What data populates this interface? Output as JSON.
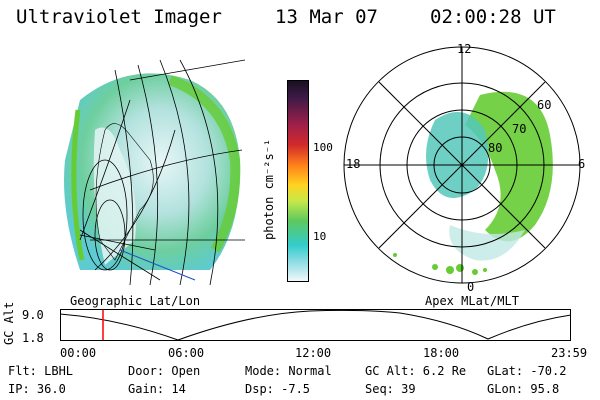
{
  "header": {
    "title": "Ultraviolet Imager",
    "date": "13 Mar 07",
    "time": "02:00:28 UT"
  },
  "colorbar": {
    "unit_label": "photon cm⁻²s⁻¹",
    "ticks": [
      "100",
      "10"
    ]
  },
  "polar": {
    "mlt_labels": [
      "12",
      "18",
      "6",
      "0"
    ],
    "lat_labels": [
      "60",
      "70",
      "80"
    ]
  },
  "panel_labels": {
    "left": "Geographic Lat/Lon",
    "right": "Apex MLat/MLT"
  },
  "altitude_plot": {
    "ylabel": "GC Alt",
    "yticks": [
      "9.0",
      "1.8"
    ],
    "xticks": [
      "00:00",
      "06:00",
      "12:00",
      "18:00",
      "23:59"
    ],
    "marker_time": "02:00"
  },
  "info": {
    "filter": "Flt: LBHL",
    "door": "Door: Open",
    "mode": "Mode: Normal",
    "gc_alt": "GC Alt: 6.2 Re",
    "glat": "GLat: -70.2",
    "ip": "IP: 36.0",
    "gain": "Gain: 14",
    "dsp": "Dsp:   -7.5",
    "seq": "Seq: 39",
    "glon": "GLon:  95.8"
  },
  "colors": {
    "marker": "#ff0000",
    "auroral_green": "#66cc33",
    "cyan": "#33cccc"
  }
}
